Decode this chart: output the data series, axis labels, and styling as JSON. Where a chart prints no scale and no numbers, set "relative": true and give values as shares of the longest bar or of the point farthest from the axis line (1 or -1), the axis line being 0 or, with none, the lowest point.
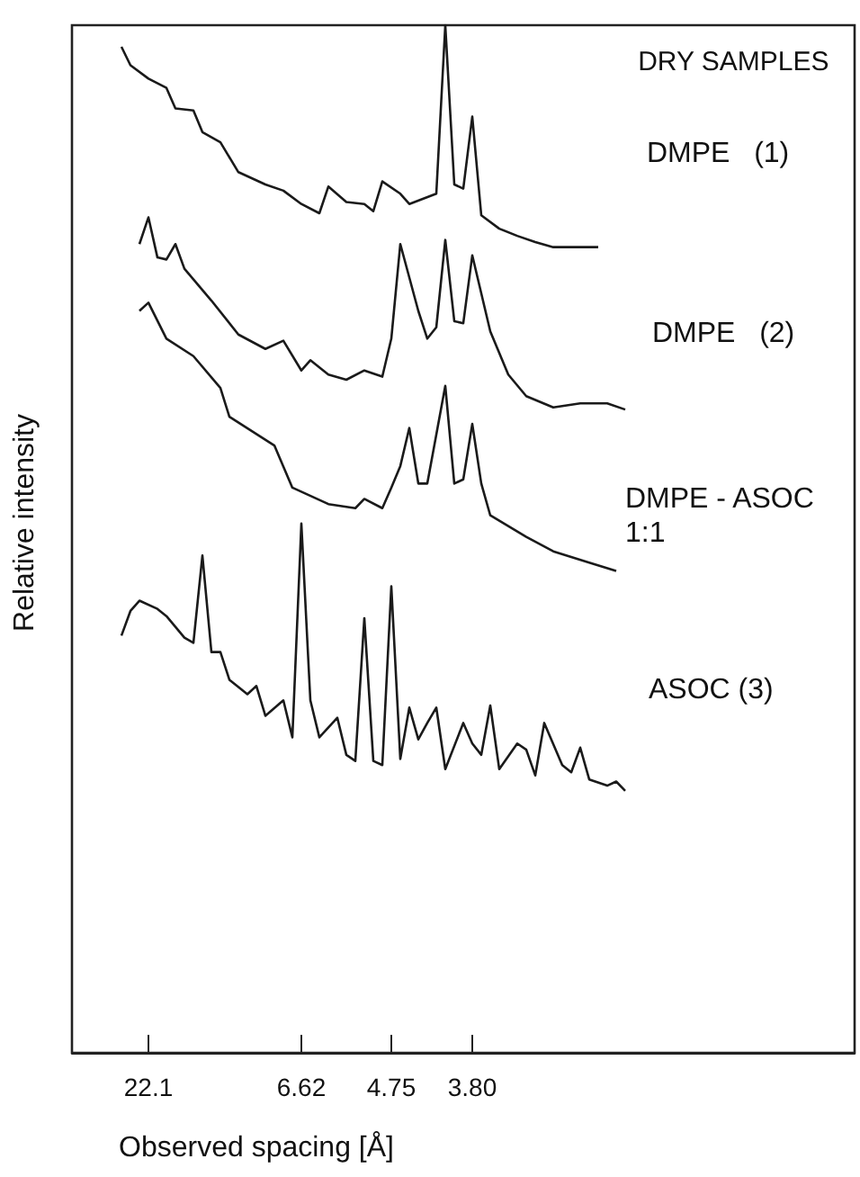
{
  "chart_data": {
    "type": "line",
    "title": "DRY SAMPLES",
    "xlabel": "Observed spacing [Å]",
    "ylabel": "Relative intensity",
    "relative": true,
    "marker": "none",
    "categories": [
      null,
      null,
      null,
      null,
      null,
      null,
      null,
      null,
      "22.1",
      null,
      null,
      null,
      null,
      null,
      null,
      null,
      null,
      null,
      null,
      null,
      null,
      null,
      null,
      null,
      null,
      "6.62",
      null,
      null,
      null,
      null,
      null,
      null,
      null,
      null,
      null,
      "4.75",
      null,
      null,
      null,
      null,
      null,
      null,
      null,
      null,
      "3.80",
      null,
      null,
      null,
      null,
      null,
      null,
      null,
      null,
      null,
      null,
      null,
      null,
      null,
      null,
      null,
      null,
      null,
      null,
      null,
      null,
      null,
      null,
      null,
      null,
      null,
      null,
      null,
      null,
      null,
      null,
      null,
      null,
      null,
      null,
      null,
      null,
      null,
      null,
      null,
      null,
      null,
      null
    ],
    "series": [
      {
        "name": "DMPE   (1)",
        "color": "#1a1a1a",
        "values": [
          null,
          null,
          null,
          null,
          null,
          0.979,
          0.961,
          null,
          0.948,
          null,
          0.939,
          0.919,
          null,
          0.917,
          0.896,
          null,
          0.886,
          null,
          0.857,
          null,
          null,
          0.845,
          null,
          0.839,
          null,
          0.826,
          null,
          0.817,
          0.843,
          null,
          0.828,
          null,
          0.826,
          0.819,
          0.848,
          null,
          0.836,
          0.826,
          null,
          null,
          0.836,
          1.0,
          0.845,
          0.841,
          0.911,
          0.815,
          null,
          0.802,
          null,
          0.795,
          null,
          0.789,
          null,
          0.784,
          null,
          0.784,
          null,
          0.784,
          0.784,
          null,
          null,
          null,
          null,
          null,
          null,
          null,
          null,
          null,
          null,
          null,
          null,
          null,
          null,
          null,
          null,
          null,
          null,
          null,
          null,
          null,
          null,
          null,
          null,
          null,
          null,
          null,
          null
        ]
      },
      {
        "name": "DMPE   (2)",
        "color": "#1a1a1a",
        "values": [
          null,
          null,
          null,
          null,
          null,
          null,
          null,
          0.787,
          0.813,
          0.774,
          0.772,
          0.787,
          0.763,
          null,
          null,
          0.732,
          null,
          null,
          0.699,
          null,
          null,
          0.685,
          null,
          0.693,
          null,
          0.664,
          0.674,
          null,
          0.66,
          null,
          0.655,
          null,
          0.664,
          null,
          0.658,
          0.695,
          0.787,
          null,
          0.722,
          0.695,
          0.706,
          0.791,
          0.712,
          0.71,
          0.776,
          null,
          0.702,
          null,
          0.66,
          null,
          0.639,
          null,
          null,
          0.628,
          null,
          null,
          0.632,
          null,
          null,
          0.632,
          null,
          0.626,
          null,
          null,
          null,
          null,
          null,
          null,
          null,
          null,
          null,
          null,
          null,
          null,
          null,
          null,
          null,
          null,
          null,
          null,
          null,
          null,
          null,
          null,
          null,
          null,
          null
        ]
      },
      {
        "name": "DMPE - ASOC\n1:1",
        "color": "#1a1a1a",
        "values": [
          null,
          null,
          null,
          null,
          null,
          null,
          null,
          0.722,
          0.73,
          null,
          0.695,
          null,
          null,
          0.678,
          null,
          null,
          0.647,
          0.619,
          null,
          null,
          null,
          null,
          0.591,
          null,
          0.55,
          null,
          null,
          null,
          0.534,
          null,
          null,
          0.53,
          0.539,
          null,
          0.53,
          0.55,
          0.571,
          0.608,
          0.554,
          0.554,
          null,
          0.649,
          0.554,
          0.558,
          0.612,
          0.554,
          0.523,
          null,
          null,
          null,
          0.502,
          null,
          null,
          0.488,
          null,
          null,
          null,
          0.477,
          null,
          null,
          0.469,
          null,
          null,
          null,
          null,
          null,
          null,
          null,
          null,
          null,
          null,
          null,
          null,
          null,
          null,
          null,
          null,
          null,
          null,
          null,
          null,
          null,
          null,
          null,
          null,
          null,
          null
        ]
      },
      {
        "name": "ASOC (3)",
        "color": "#1a1a1a",
        "values": [
          null,
          null,
          null,
          null,
          null,
          0.406,
          0.43,
          0.44,
          null,
          0.432,
          0.425,
          null,
          0.404,
          0.399,
          0.484,
          0.39,
          0.39,
          0.363,
          null,
          0.349,
          0.357,
          0.328,
          null,
          0.343,
          0.307,
          0.515,
          0.343,
          0.307,
          null,
          0.326,
          0.29,
          0.284,
          0.423,
          0.284,
          0.28,
          0.454,
          0.286,
          0.336,
          0.305,
          0.321,
          0.336,
          0.276,
          null,
          0.321,
          0.301,
          0.29,
          0.338,
          0.276,
          null,
          0.301,
          0.295,
          0.27,
          0.321,
          null,
          0.28,
          0.273,
          0.297,
          0.266,
          null,
          0.26,
          0.264,
          0.255,
          null,
          null,
          null,
          null,
          null,
          null,
          null,
          null,
          null,
          null,
          null,
          null,
          null,
          null,
          null,
          null,
          null,
          null,
          null,
          null,
          null,
          null,
          null,
          null,
          null
        ]
      }
    ]
  }
}
